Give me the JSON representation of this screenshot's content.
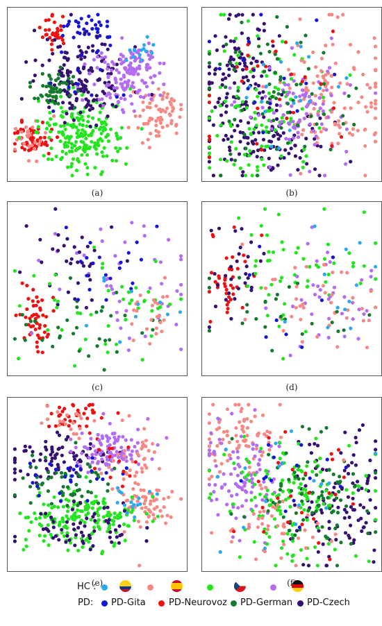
{
  "colors": {
    "hc_gita": "#2ba8f0",
    "hc_neurovoz": "#f58a85",
    "hc_german": "#22e51d",
    "hc_czech": "#b36cf2",
    "pd_gita": "#1515d6",
    "pd_neurovoz": "#ee1111",
    "pd_german": "#147a2d",
    "pd_czech": "#351072"
  },
  "captions": [
    "(a)",
    "(b)",
    "(c)",
    "(d)",
    "(e)",
    "(f)"
  ],
  "legend": {
    "hc_label": "HC :",
    "pd_label": "PD:",
    "pd_items": [
      "PD-Gita",
      "PD-Neurovoz",
      "PD-German",
      "PD-Czech"
    ],
    "flags": [
      "colombia-flag-icon",
      "spain-flag-icon",
      "czech-flag-icon",
      "germany-flag-icon"
    ]
  },
  "chart_data": [
    {
      "type": "scatter",
      "title": "",
      "xlabel": "",
      "ylabel": "",
      "panel": "(a)",
      "grid": false,
      "clusters": [
        {
          "series": "pd_neurovoz",
          "cx": 0.26,
          "cy": 0.14,
          "sx": 0.04,
          "sy": 0.05,
          "n": 30
        },
        {
          "series": "pd_gita",
          "cx": 0.45,
          "cy": 0.11,
          "sx": 0.07,
          "sy": 0.04,
          "n": 35
        },
        {
          "series": "hc_neurovoz",
          "cx": 0.83,
          "cy": 0.6,
          "sx": 0.07,
          "sy": 0.08,
          "n": 70
        },
        {
          "series": "pd_neurovoz",
          "cx": 0.14,
          "cy": 0.76,
          "sx": 0.06,
          "sy": 0.05,
          "n": 55
        },
        {
          "series": "hc_neurovoz",
          "cx": 0.12,
          "cy": 0.74,
          "sx": 0.05,
          "sy": 0.06,
          "n": 25
        },
        {
          "series": "hc_german",
          "cx": 0.41,
          "cy": 0.72,
          "sx": 0.12,
          "sy": 0.1,
          "n": 200
        },
        {
          "series": "pd_czech",
          "cx": 0.42,
          "cy": 0.41,
          "sx": 0.12,
          "sy": 0.11,
          "n": 150
        },
        {
          "series": "pd_german",
          "cx": 0.25,
          "cy": 0.45,
          "sx": 0.06,
          "sy": 0.06,
          "n": 55
        },
        {
          "series": "hc_czech",
          "cx": 0.65,
          "cy": 0.43,
          "sx": 0.09,
          "sy": 0.09,
          "n": 110
        },
        {
          "series": "hc_czech",
          "cx": 0.7,
          "cy": 0.3,
          "sx": 0.07,
          "sy": 0.05,
          "n": 40
        },
        {
          "series": "hc_gita",
          "cx": 0.72,
          "cy": 0.24,
          "sx": 0.05,
          "sy": 0.04,
          "n": 14
        },
        {
          "series": "pd_gita",
          "cx": 0.42,
          "cy": 0.4,
          "sx": 0.1,
          "sy": 0.1,
          "n": 15
        }
      ]
    },
    {
      "type": "scatter",
      "title": "",
      "xlabel": "",
      "ylabel": "",
      "panel": "(b)",
      "grid": false,
      "clusters": [
        {
          "series": "pd_czech",
          "cx": 0.2,
          "cy": 0.35,
          "sx": 0.1,
          "sy": 0.2,
          "n": 110
        },
        {
          "series": "pd_czech",
          "cx": 0.35,
          "cy": 0.76,
          "sx": 0.18,
          "sy": 0.1,
          "n": 110
        },
        {
          "series": "hc_german",
          "cx": 0.35,
          "cy": 0.6,
          "sx": 0.18,
          "sy": 0.2,
          "n": 120
        },
        {
          "series": "hc_neurovoz",
          "cx": 0.72,
          "cy": 0.5,
          "sx": 0.16,
          "sy": 0.2,
          "n": 120
        },
        {
          "series": "hc_czech",
          "cx": 0.55,
          "cy": 0.55,
          "sx": 0.15,
          "sy": 0.15,
          "n": 90
        },
        {
          "series": "pd_german",
          "cx": 0.4,
          "cy": 0.5,
          "sx": 0.2,
          "sy": 0.2,
          "n": 70
        },
        {
          "series": "pd_neurovoz",
          "cx": 0.35,
          "cy": 0.5,
          "sx": 0.2,
          "sy": 0.2,
          "n": 30
        },
        {
          "series": "hc_gita",
          "cx": 0.5,
          "cy": 0.5,
          "sx": 0.2,
          "sy": 0.2,
          "n": 20
        },
        {
          "series": "pd_gita",
          "cx": 0.3,
          "cy": 0.5,
          "sx": 0.2,
          "sy": 0.2,
          "n": 15
        }
      ]
    },
    {
      "type": "scatter",
      "title": "",
      "xlabel": "",
      "ylabel": "",
      "panel": "(c)",
      "grid": false,
      "clusters": [
        {
          "series": "pd_neurovoz",
          "cx": 0.14,
          "cy": 0.65,
          "sx": 0.04,
          "sy": 0.1,
          "n": 50
        },
        {
          "series": "hc_czech",
          "cx": 0.65,
          "cy": 0.4,
          "sx": 0.2,
          "sy": 0.22,
          "n": 45
        },
        {
          "series": "pd_czech",
          "cx": 0.35,
          "cy": 0.35,
          "sx": 0.15,
          "sy": 0.15,
          "n": 35
        },
        {
          "series": "hc_german",
          "cx": 0.55,
          "cy": 0.62,
          "sx": 0.2,
          "sy": 0.15,
          "n": 45
        },
        {
          "series": "pd_german",
          "cx": 0.45,
          "cy": 0.72,
          "sx": 0.2,
          "sy": 0.12,
          "n": 35
        },
        {
          "series": "hc_neurovoz",
          "cx": 0.78,
          "cy": 0.66,
          "sx": 0.08,
          "sy": 0.12,
          "n": 25
        },
        {
          "series": "pd_gita",
          "cx": 0.55,
          "cy": 0.4,
          "sx": 0.2,
          "sy": 0.15,
          "n": 20
        },
        {
          "series": "hc_gita",
          "cx": 0.7,
          "cy": 0.6,
          "sx": 0.15,
          "sy": 0.12,
          "n": 10
        }
      ]
    },
    {
      "type": "scatter",
      "title": "",
      "xlabel": "",
      "ylabel": "",
      "panel": "(d)",
      "grid": false,
      "clusters": [
        {
          "series": "pd_neurovoz",
          "cx": 0.16,
          "cy": 0.45,
          "sx": 0.06,
          "sy": 0.12,
          "n": 40
        },
        {
          "series": "pd_czech",
          "cx": 0.2,
          "cy": 0.4,
          "sx": 0.08,
          "sy": 0.15,
          "n": 30
        },
        {
          "series": "hc_german",
          "cx": 0.55,
          "cy": 0.4,
          "sx": 0.2,
          "sy": 0.2,
          "n": 55
        },
        {
          "series": "hc_czech",
          "cx": 0.7,
          "cy": 0.55,
          "sx": 0.15,
          "sy": 0.15,
          "n": 40
        },
        {
          "series": "hc_neurovoz",
          "cx": 0.6,
          "cy": 0.6,
          "sx": 0.25,
          "sy": 0.15,
          "n": 40
        },
        {
          "series": "pd_german",
          "cx": 0.4,
          "cy": 0.65,
          "sx": 0.2,
          "sy": 0.12,
          "n": 25
        },
        {
          "series": "hc_gita",
          "cx": 0.75,
          "cy": 0.5,
          "sx": 0.12,
          "sy": 0.12,
          "n": 12
        },
        {
          "series": "pd_gita",
          "cx": 0.5,
          "cy": 0.5,
          "sx": 0.2,
          "sy": 0.2,
          "n": 8
        }
      ]
    },
    {
      "type": "scatter",
      "title": "",
      "xlabel": "",
      "ylabel": "",
      "panel": "(e)",
      "grid": false,
      "clusters": [
        {
          "series": "pd_neurovoz",
          "cx": 0.37,
          "cy": 0.1,
          "sx": 0.08,
          "sy": 0.05,
          "n": 35
        },
        {
          "series": "hc_neurovoz",
          "cx": 0.36,
          "cy": 0.13,
          "sx": 0.07,
          "sy": 0.05,
          "n": 20
        },
        {
          "series": "pd_czech",
          "cx": 0.25,
          "cy": 0.35,
          "sx": 0.15,
          "sy": 0.06,
          "n": 80
        },
        {
          "series": "hc_czech",
          "cx": 0.55,
          "cy": 0.3,
          "sx": 0.1,
          "sy": 0.07,
          "n": 100
        },
        {
          "series": "hc_neurovoz",
          "cx": 0.7,
          "cy": 0.45,
          "sx": 0.08,
          "sy": 0.15,
          "n": 60
        },
        {
          "series": "hc_neurovoz",
          "cx": 0.8,
          "cy": 0.62,
          "sx": 0.07,
          "sy": 0.05,
          "n": 35
        },
        {
          "series": "hc_german",
          "cx": 0.42,
          "cy": 0.7,
          "sx": 0.16,
          "sy": 0.08,
          "n": 180
        },
        {
          "series": "pd_german",
          "cx": 0.3,
          "cy": 0.5,
          "sx": 0.12,
          "sy": 0.08,
          "n": 60
        },
        {
          "series": "pd_czech",
          "cx": 0.4,
          "cy": 0.75,
          "sx": 0.15,
          "sy": 0.08,
          "n": 60
        },
        {
          "series": "pd_gita",
          "cx": 0.35,
          "cy": 0.45,
          "sx": 0.12,
          "sy": 0.08,
          "n": 25
        },
        {
          "series": "hc_gita",
          "cx": 0.72,
          "cy": 0.58,
          "sx": 0.08,
          "sy": 0.05,
          "n": 15
        },
        {
          "series": "pd_neurovoz",
          "cx": 0.55,
          "cy": 0.4,
          "sx": 0.1,
          "sy": 0.1,
          "n": 15
        }
      ]
    },
    {
      "type": "scatter",
      "title": "",
      "xlabel": "",
      "ylabel": "",
      "panel": "(f)",
      "grid": false,
      "clusters": [
        {
          "series": "hc_neurovoz",
          "cx": 0.2,
          "cy": 0.2,
          "sx": 0.1,
          "sy": 0.12,
          "n": 80
        },
        {
          "series": "hc_czech",
          "cx": 0.25,
          "cy": 0.45,
          "sx": 0.12,
          "sy": 0.14,
          "n": 100
        },
        {
          "series": "pd_czech",
          "cx": 0.75,
          "cy": 0.55,
          "sx": 0.15,
          "sy": 0.2,
          "n": 110
        },
        {
          "series": "hc_german",
          "cx": 0.5,
          "cy": 0.6,
          "sx": 0.18,
          "sy": 0.16,
          "n": 150
        },
        {
          "series": "pd_german",
          "cx": 0.6,
          "cy": 0.55,
          "sx": 0.18,
          "sy": 0.16,
          "n": 80
        },
        {
          "series": "hc_neurovoz",
          "cx": 0.4,
          "cy": 0.72,
          "sx": 0.15,
          "sy": 0.12,
          "n": 45
        },
        {
          "series": "pd_neurovoz",
          "cx": 0.5,
          "cy": 0.5,
          "sx": 0.2,
          "sy": 0.18,
          "n": 25
        },
        {
          "series": "hc_gita",
          "cx": 0.45,
          "cy": 0.5,
          "sx": 0.2,
          "sy": 0.2,
          "n": 18
        },
        {
          "series": "pd_gita",
          "cx": 0.55,
          "cy": 0.5,
          "sx": 0.2,
          "sy": 0.2,
          "n": 15
        }
      ]
    }
  ]
}
